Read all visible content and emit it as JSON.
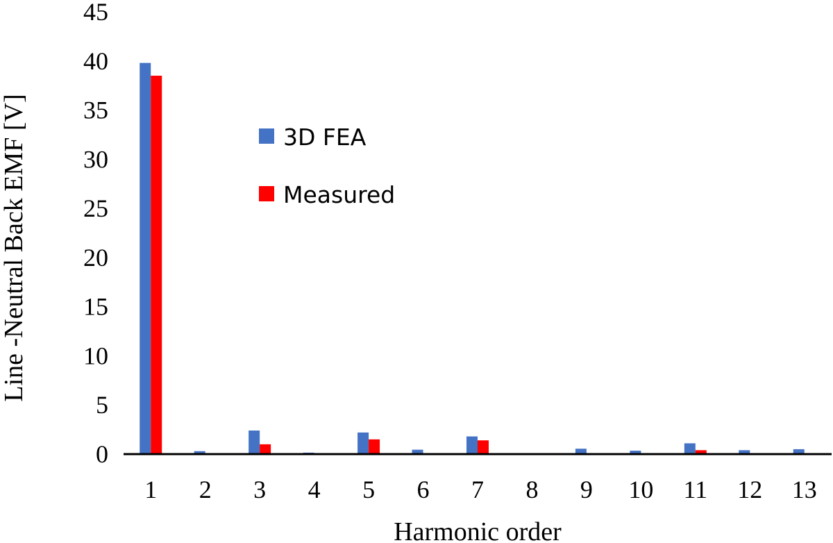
{
  "colors": {
    "fea": "#4472C4",
    "measured": "#FF0000",
    "axis": "#000000"
  },
  "chart_data": {
    "type": "bar",
    "title": "",
    "xlabel": "Harmonic order",
    "ylabel": "Line -Neutral Back EMF [V]",
    "ylim": [
      0,
      45
    ],
    "yticks": [
      0,
      5,
      10,
      15,
      20,
      25,
      30,
      35,
      40,
      45
    ],
    "grid": false,
    "legend_position": "center-left",
    "categories": [
      "1",
      "2",
      "3",
      "4",
      "5",
      "6",
      "7",
      "8",
      "9",
      "10",
      "11",
      "12",
      "13"
    ],
    "series": [
      {
        "name": "3D FEA",
        "color": "#4472C4",
        "values": [
          39.8,
          0.3,
          2.4,
          0.15,
          2.2,
          0.45,
          1.8,
          0.05,
          0.55,
          0.35,
          1.1,
          0.4,
          0.5
        ]
      },
      {
        "name": "Measured",
        "color": "#FF0000",
        "values": [
          38.5,
          0.0,
          1.0,
          0.0,
          1.5,
          0.0,
          1.4,
          0.0,
          0.0,
          0.0,
          0.4,
          0.0,
          0.0
        ]
      }
    ]
  }
}
